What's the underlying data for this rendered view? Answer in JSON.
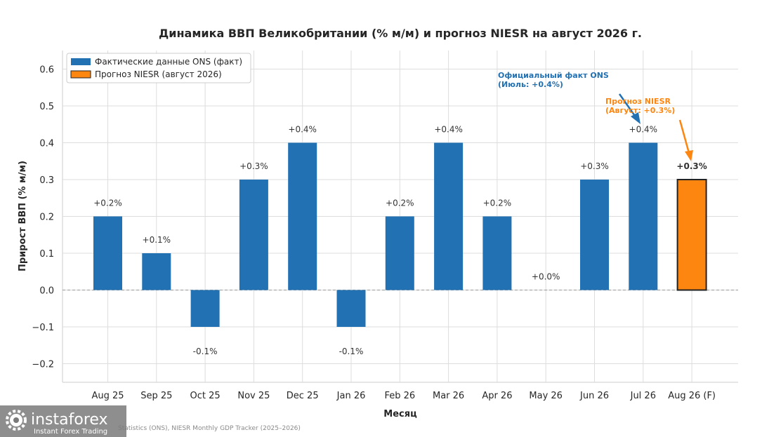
{
  "chart_data": {
    "type": "bar",
    "title": "Динамика ВВП Великобритании (% м/м) и прогноз NIESR на август 2026 г.",
    "xlabel": "Месяц",
    "ylabel": "Прирост ВВП (% м/м)",
    "ylim": [
      -0.25,
      0.65
    ],
    "yticks": [
      -0.2,
      -0.1,
      0.0,
      0.1,
      0.2,
      0.3,
      0.4,
      0.5,
      0.6
    ],
    "ytick_labels": [
      "−0.2",
      "−0.1",
      "0.0",
      "0.1",
      "0.2",
      "0.3",
      "0.4",
      "0.5",
      "0.6"
    ],
    "grid": true,
    "legend_position": "top-left",
    "categories": [
      "Aug 25",
      "Sep 25",
      "Oct 25",
      "Nov 25",
      "Dec 25",
      "Jan 26",
      "Feb 26",
      "Mar 26",
      "Apr 26",
      "May 26",
      "Jun 26",
      "Jul 26",
      "Aug 26 (F)"
    ],
    "series": [
      {
        "name": "Фактические данные ONS (факт)",
        "color": "#2271b3",
        "values": [
          0.2,
          0.1,
          -0.1,
          0.3,
          0.4,
          -0.1,
          0.2,
          0.4,
          0.2,
          0.0,
          0.3,
          0.4,
          null
        ],
        "labels": [
          "+0.2%",
          "+0.1%",
          "-0.1%",
          "+0.3%",
          "+0.4%",
          "-0.1%",
          "+0.2%",
          "+0.4%",
          "+0.2%",
          "+0.0%",
          "+0.3%",
          "+0.4%",
          ""
        ]
      },
      {
        "name": "Прогноз NIESR (август 2026)",
        "color": "#fd8611",
        "values": [
          null,
          null,
          null,
          null,
          null,
          null,
          null,
          null,
          null,
          null,
          null,
          null,
          0.3
        ],
        "labels": [
          "",
          "",
          "",
          "",
          "",
          "",
          "",
          "",
          "",
          "",
          "",
          "",
          "+0.3%"
        ]
      }
    ],
    "annotations": [
      {
        "text_line1": "Официальный факт ONS",
        "text_line2": "(Июль: +0.4%)",
        "color": "#2271b3"
      },
      {
        "text_line1": "Прогноз NIESR",
        "text_line2": "(Август: +0.3%)",
        "color": "#fd8611"
      }
    ]
  },
  "source_text": "Statistics (ONS), NIESR Monthly GDP Tracker (2025–2026)",
  "watermark": {
    "brand": "instaforex",
    "tagline": "Instant Forex Trading"
  }
}
